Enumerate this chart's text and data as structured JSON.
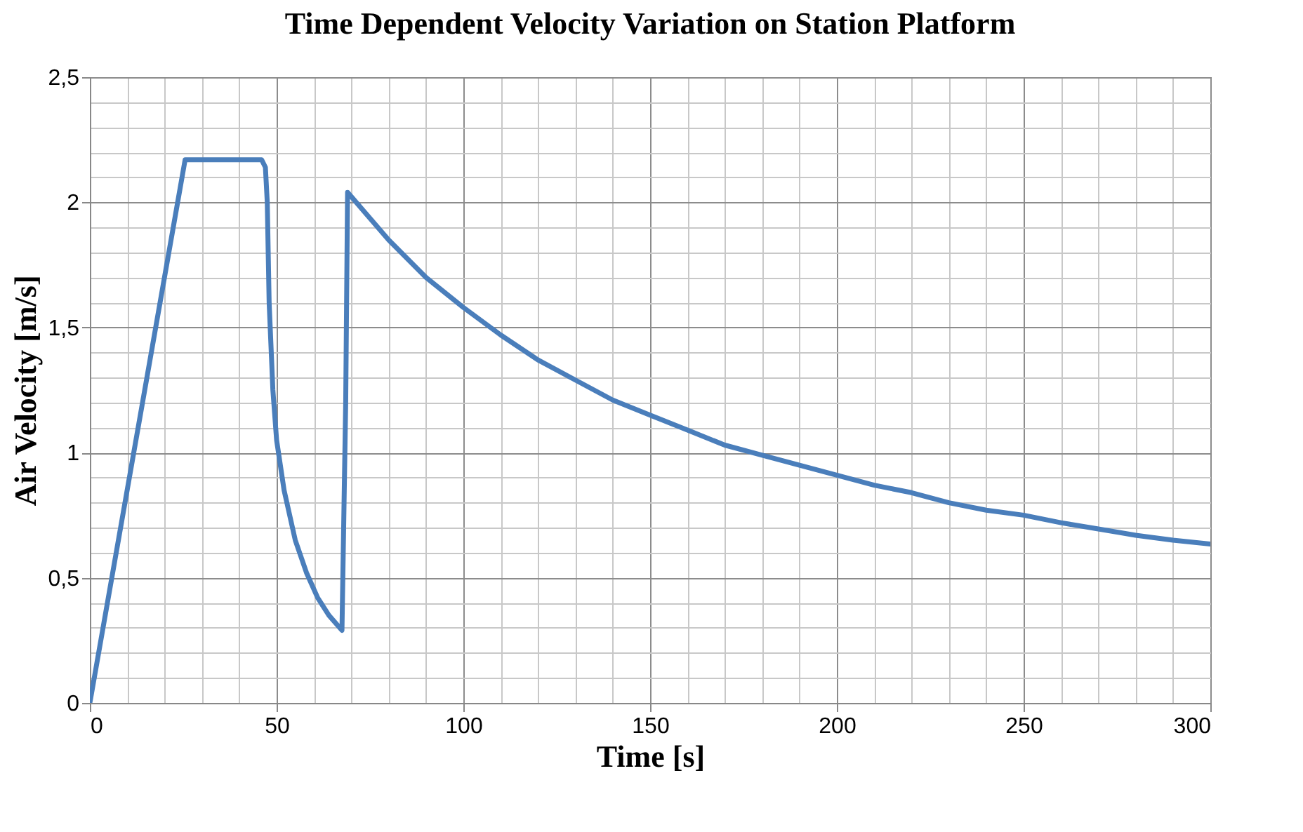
{
  "chart_data": {
    "type": "line",
    "title": "Time Dependent Velocity Variation on Station Platform",
    "xlabel": "Time [s]",
    "ylabel": "Air Velocity [m/s]",
    "xlim": [
      0,
      300
    ],
    "xticks": [
      0,
      50,
      100,
      150,
      200,
      250,
      300
    ],
    "ylim": [
      0,
      2.5
    ],
    "yticks": [
      0,
      {
        "value": 0.5,
        "label": "0,5"
      },
      1,
      {
        "value": 1.5,
        "label": "1,5"
      },
      2,
      {
        "value": 2.5,
        "label": "2,5"
      }
    ],
    "grid": true,
    "line_style": "solid",
    "series": [
      {
        "color": "#4a7ebb",
        "x": [
          0,
          25.5,
          46,
          47,
          47.5,
          48,
          49,
          50,
          52,
          55,
          58,
          61,
          64,
          67.5,
          68.5,
          69,
          80,
          90,
          100,
          110,
          120,
          130,
          140,
          150,
          160,
          170,
          180,
          190,
          200,
          210,
          220,
          230,
          240,
          250,
          260,
          270,
          280,
          290,
          300
        ],
        "values": [
          0,
          2.17,
          2.17,
          2.14,
          2.0,
          1.6,
          1.25,
          1.05,
          0.85,
          0.65,
          0.52,
          0.42,
          0.35,
          0.29,
          1.2,
          2.04,
          1.85,
          1.7,
          1.58,
          1.47,
          1.37,
          1.29,
          1.21,
          1.15,
          1.09,
          1.03,
          0.99,
          0.95,
          0.91,
          0.87,
          0.84,
          0.8,
          0.77,
          0.75,
          0.72,
          0.695,
          0.67,
          0.65,
          0.635
        ]
      }
    ]
  }
}
